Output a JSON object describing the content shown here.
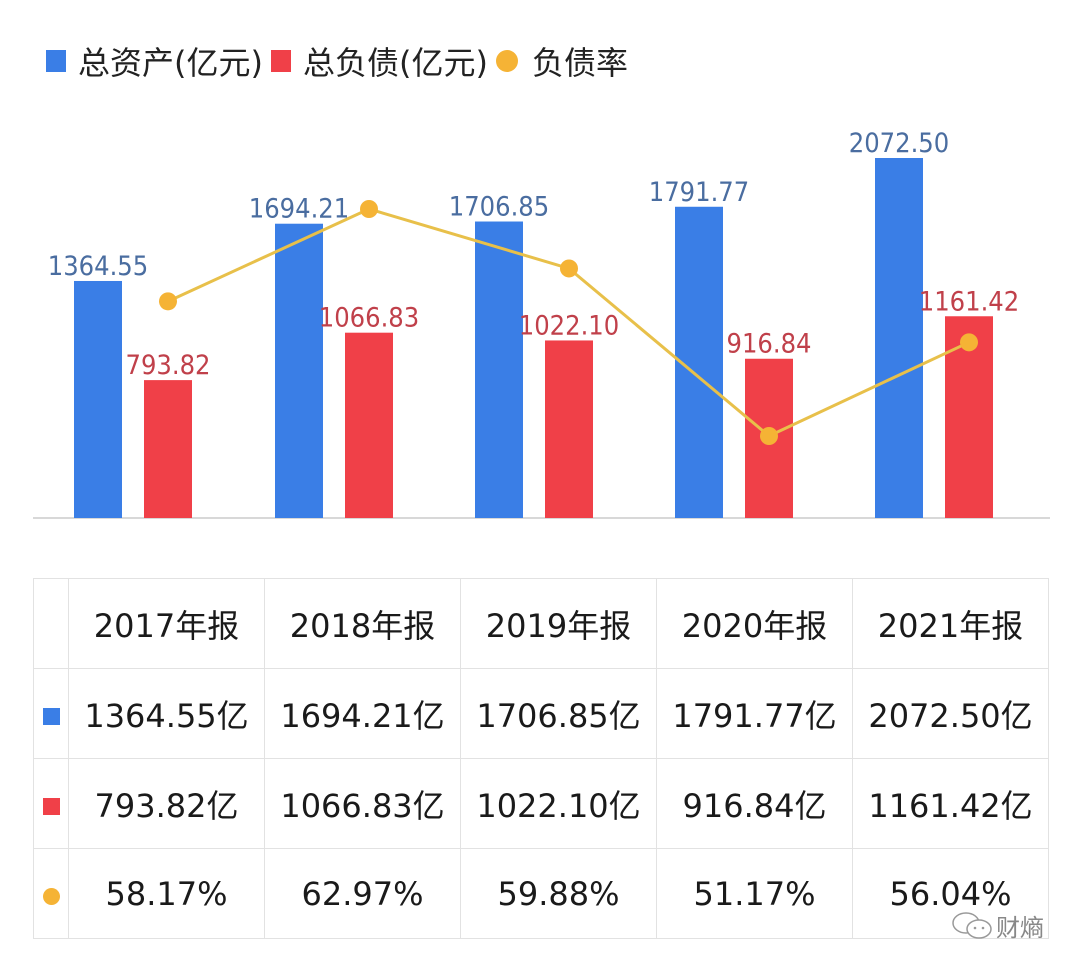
{
  "colors": {
    "assets": "#3a7ee6",
    "liabilities": "#f04048",
    "rate": "#f5b335",
    "assets_label": "#4a6da0",
    "liabilities_label": "#c0404a",
    "rate_line": "#e8c04a"
  },
  "legend": [
    {
      "label": "总资产(亿元)",
      "shape": "square",
      "color": "#3a7ee6"
    },
    {
      "label": "总负债(亿元)",
      "shape": "square",
      "color": "#f04048"
    },
    {
      "label": "负债率",
      "shape": "circle",
      "color": "#f5b335"
    }
  ],
  "chart_data": {
    "type": "bar",
    "title": "",
    "categories": [
      "2017年报",
      "2018年报",
      "2019年报",
      "2020年报",
      "2021年报"
    ],
    "series": [
      {
        "name": "总资产(亿元)",
        "type": "bar",
        "values": [
          1364.55,
          1694.21,
          1706.85,
          1791.77,
          2072.5
        ],
        "labels": [
          "1364.55",
          "1694.21",
          "1706.85",
          "1791.77",
          "2072.50"
        ]
      },
      {
        "name": "总负债(亿元)",
        "type": "bar",
        "values": [
          793.82,
          1066.83,
          1022.1,
          916.84,
          1161.42
        ],
        "labels": [
          "793.82",
          "1066.83",
          "1022.10",
          "916.84",
          "1161.42"
        ]
      },
      {
        "name": "负债率",
        "type": "line",
        "values": [
          58.17,
          62.97,
          59.88,
          51.17,
          56.04
        ],
        "unit": "%"
      }
    ],
    "xlabel": "",
    "ylabel": "",
    "ylim": [
      0,
      2072.5
    ],
    "rate_lim": [
      51.17,
      62.97
    ],
    "grid": false,
    "legend_position": "top-left"
  },
  "table": {
    "headers": [
      "2017年报",
      "2018年报",
      "2019年报",
      "2020年报",
      "2021年报"
    ],
    "rows": [
      {
        "marker": "square",
        "color": "#3a7ee6",
        "cells": [
          "1364.55亿",
          "1694.21亿",
          "1706.85亿",
          "1791.77亿",
          "2072.50亿"
        ]
      },
      {
        "marker": "square",
        "color": "#f04048",
        "cells": [
          "793.82亿",
          "1066.83亿",
          "1022.10亿",
          "916.84亿",
          "1161.42亿"
        ]
      },
      {
        "marker": "circle",
        "color": "#f5b335",
        "cells": [
          "58.17%",
          "62.97%",
          "59.88%",
          "51.17%",
          "56.04%"
        ]
      }
    ]
  },
  "watermark": {
    "icon": "wechat-icon",
    "text": "财熵"
  }
}
